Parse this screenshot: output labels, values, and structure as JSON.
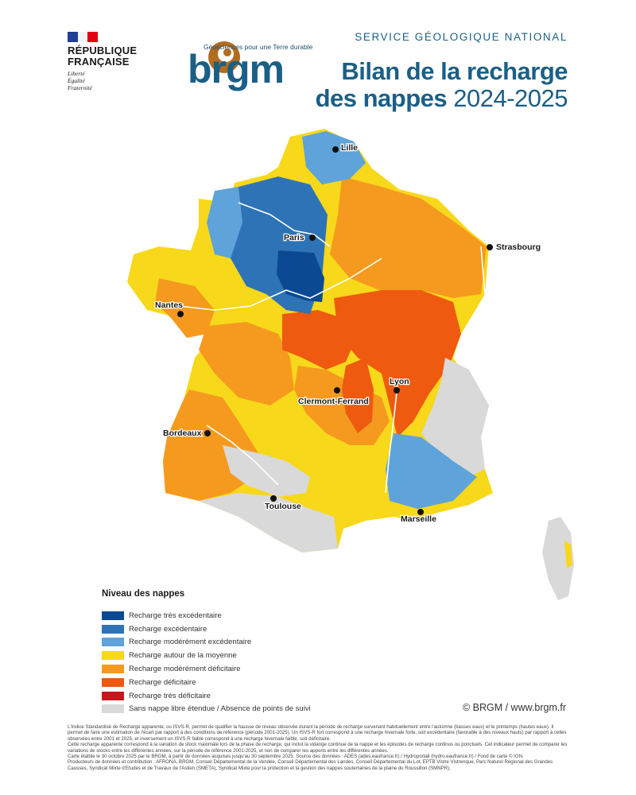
{
  "header": {
    "republic_line1": "RÉPUBLIQUE",
    "republic_line2": "FRANÇAISE",
    "motto1": "Liberté",
    "motto2": "Égalité",
    "motto3": "Fraternité",
    "brgm_tagline": "Géosciences pour une Terre durable",
    "brgm_wordmark": "brgm",
    "service": "SERVICE GÉOLOGIQUE NATIONAL",
    "title_line1": "Bilan de la recharge",
    "title_line2_bold": "des nappes",
    "title_line2_year": "2024-2025"
  },
  "map": {
    "cities": [
      {
        "name": "Lille"
      },
      {
        "name": "Paris"
      },
      {
        "name": "Strasbourg"
      },
      {
        "name": "Nantes"
      },
      {
        "name": "Lyon"
      },
      {
        "name": "Clermont-Ferrand"
      },
      {
        "name": "Bordeaux"
      },
      {
        "name": "Toulouse"
      },
      {
        "name": "Marseille"
      }
    ]
  },
  "legend": {
    "title": "Niveau des nappes",
    "items": [
      {
        "label": "Recharge très excédentaire",
        "color": "#0b4a93"
      },
      {
        "label": "Recharge excédentaire",
        "color": "#2f73b7"
      },
      {
        "label": "Recharge modérément excédentaire",
        "color": "#5ea3d9"
      },
      {
        "label": "Recharge autour de la moyenne",
        "color": "#f7d81a"
      },
      {
        "label": "Recharge modérément déficitaire",
        "color": "#f59a1e"
      },
      {
        "label": "Recharge déficitaire",
        "color": "#ee5a0f"
      },
      {
        "label": "Recharge très déficitaire",
        "color": "#c8161d"
      },
      {
        "label": "Sans nappe libre étendue / Absence de points de suivi",
        "color": "#d9d9d9"
      }
    ]
  },
  "copyright": "© BRGM / www.brgm.fr",
  "footnote": {
    "p1": "L'Indice Standardisé de Recharge apparente, ou ISVS-R, permet de qualifier la hausse de niveau observée durant la période de recharge survenant habituellement entre l'automne (basses eaux) et le printemps (hautes eaux). Il permet de faire une estimation de l'écart par rapport à des conditions de référence (période 2001-2025). Un ISVS-R fort correspond à une recharge hivernale forte, soit excédentaire (favorable à des niveaux hauts) par rapport à celles observées entre 2001 et 2025, et inversement un ISVS-R faible correspond à une recharge hivernale faible, soit déficitaire.",
    "p2": "Cette recharge apparente correspond à la variation de stock maximale lors de la phase de recharge, qui inclut la vidange continue de la nappe et les épisodes de recharge continus ou ponctuels. Cet indicateur permet de comparer les variations de stocks entre les différentes années, sur la période de référence 2001-2025, et non de comparer les apports entre les différentes années.",
    "p3": "Carte établie le 30 octobre 2025 par le BRGM, à partir de données acquises jusqu'au 30 septembre 2025. Source des données : ADES (ades.eaufrance.fr) / Hydroportail (hydro.eaufrance.fr) / Fond de carte © IGN.",
    "p4": "Producteurs de données et contribution : AFRONA, BRGM, Conseil Départemental de la Vendée, Conseil Départemental des Landes, Conseil Départemental du Lot, EPTB Vistre Vistrenque, Parc Naturel Régional des Grandes Causses, Syndicat Mixte d'Etudes et de Travaux de l'Astien (SMETA), Syndicat Mixte pour la protection et la gestion des nappes souterraines de la plaine du Roussillon (SMNPR)."
  }
}
